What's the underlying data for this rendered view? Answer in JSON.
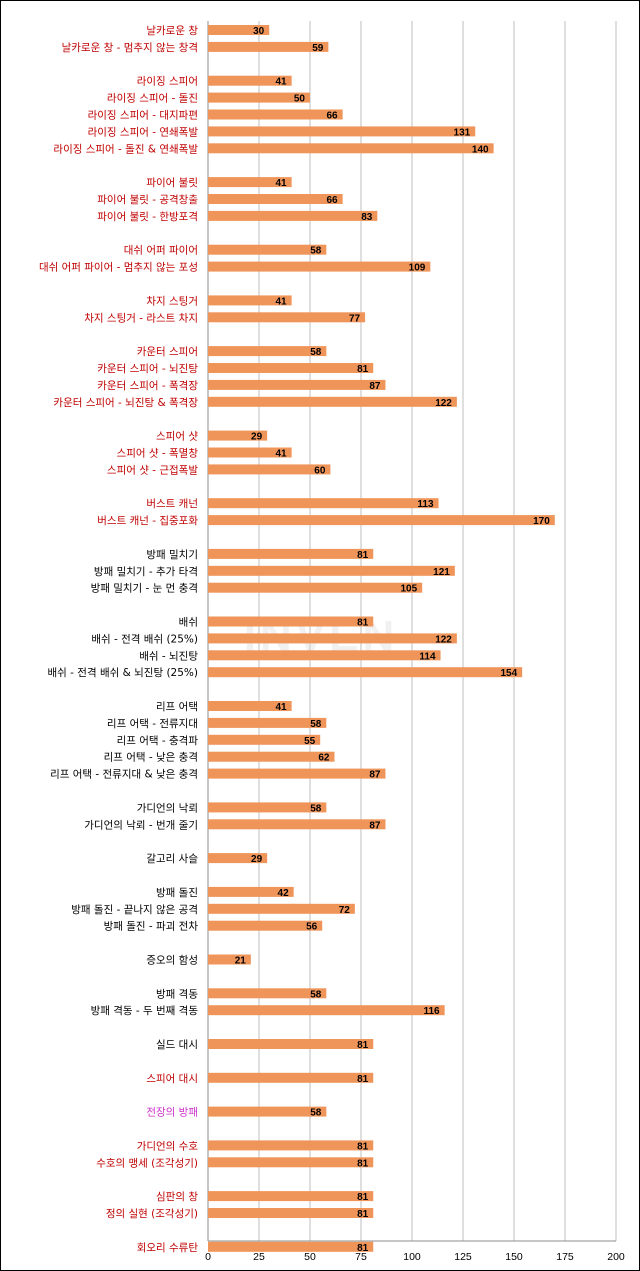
{
  "watermark": "INVEN",
  "chart_data": {
    "type": "bar",
    "orientation": "horizontal",
    "grid": true,
    "xlim": [
      0,
      200
    ],
    "xticks": [
      0,
      25,
      50,
      75,
      100,
      125,
      150,
      175,
      200
    ],
    "colors": {
      "bar": "#f0955a",
      "label_red": "#c00000",
      "label_black": "#000000",
      "label_magenta": "#cc33cc",
      "grid": "#bfbfbf"
    },
    "groups": [
      {
        "color": "red",
        "items": [
          {
            "label": "날카로운 창",
            "value": 30
          },
          {
            "label": "날카로운 창 - 멈추지 않는 창격",
            "value": 59
          }
        ]
      },
      {
        "color": "red",
        "items": [
          {
            "label": "라이징 스피어",
            "value": 41
          },
          {
            "label": "라이징 스피어 - 돌진",
            "value": 50
          },
          {
            "label": "라이징 스피어 - 대지파편",
            "value": 66
          },
          {
            "label": "라이징 스피어 - 연쇄폭발",
            "value": 131
          },
          {
            "label": "라이징 스피어 - 돌진 & 연쇄폭발",
            "value": 140
          }
        ]
      },
      {
        "color": "red",
        "items": [
          {
            "label": "파이어 불릿",
            "value": 41
          },
          {
            "label": "파이어 불릿 - 공격창출",
            "value": 66
          },
          {
            "label": "파이어 불릿 - 한방포격",
            "value": 83
          }
        ]
      },
      {
        "color": "red",
        "items": [
          {
            "label": "대쉬 어퍼 파이어",
            "value": 58
          },
          {
            "label": "대쉬 어퍼 파이어 - 멈추지 않는 포성",
            "value": 109
          }
        ]
      },
      {
        "color": "red",
        "items": [
          {
            "label": "차지 스팅거",
            "value": 41
          },
          {
            "label": "차지 스팅거 - 라스트 차지",
            "value": 77
          }
        ]
      },
      {
        "color": "red",
        "items": [
          {
            "label": "카운터 스피어",
            "value": 58
          },
          {
            "label": "카운터 스피어 - 뇌진탕",
            "value": 81
          },
          {
            "label": "카운터 스피어 - 폭격장",
            "value": 87
          },
          {
            "label": "카운터 스피어 - 뇌진탕 & 폭격장",
            "value": 122
          }
        ]
      },
      {
        "color": "red",
        "items": [
          {
            "label": "스피어 샷",
            "value": 29
          },
          {
            "label": "스피어 샷 - 폭멸창",
            "value": 41
          },
          {
            "label": "스피어 샷 - 근접폭발",
            "value": 60
          }
        ]
      },
      {
        "color": "red",
        "items": [
          {
            "label": "버스트 캐넌",
            "value": 113
          },
          {
            "label": "버스트 캐넌 - 집중포화",
            "value": 170
          }
        ]
      },
      {
        "color": "black",
        "items": [
          {
            "label": "방패 밀치기",
            "value": 81
          },
          {
            "label": "방패 밀치기 - 추가 타격",
            "value": 121
          },
          {
            "label": "방패 밀치기 - 눈 먼 충격",
            "value": 105
          }
        ]
      },
      {
        "color": "black",
        "items": [
          {
            "label": "배쉬",
            "value": 81
          },
          {
            "label": "배쉬 - 전격 배쉬 (25%)",
            "value": 122
          },
          {
            "label": "배쉬 - 뇌진탕",
            "value": 114
          },
          {
            "label": "배쉬 - 전격 배쉬 & 뇌진탕 (25%)",
            "value": 154
          }
        ]
      },
      {
        "color": "black",
        "items": [
          {
            "label": "리프 어택",
            "value": 41
          },
          {
            "label": "리프 어택 - 전류지대",
            "value": 58
          },
          {
            "label": "리프 어택 - 충격파",
            "value": 55
          },
          {
            "label": "리프 어택 - 낮은 충격",
            "value": 62
          },
          {
            "label": "리프 어택 - 전류지대 & 낮은 충격",
            "value": 87
          }
        ]
      },
      {
        "color": "black",
        "items": [
          {
            "label": "가디언의 낙뢰",
            "value": 58
          },
          {
            "label": "가디언의 낙뢰 - 번개 줄기",
            "value": 87
          }
        ]
      },
      {
        "color": "black",
        "items": [
          {
            "label": "갈고리 사슬",
            "value": 29
          }
        ]
      },
      {
        "color": "black",
        "items": [
          {
            "label": "방패 돌진",
            "value": 42
          },
          {
            "label": "방패 돌진 - 끝나지 않은 공격",
            "value": 72
          },
          {
            "label": "방패 돌진 - 파괴 전차",
            "value": 56
          }
        ]
      },
      {
        "color": "black",
        "items": [
          {
            "label": "증오의 함성",
            "value": 21
          }
        ]
      },
      {
        "color": "black",
        "items": [
          {
            "label": "방패 격동",
            "value": 58
          },
          {
            "label": "방패 격동 - 두 번째 격동",
            "value": 116
          }
        ]
      },
      {
        "color": "black",
        "items": [
          {
            "label": "실드 대시",
            "value": 81
          }
        ]
      },
      {
        "color": "red",
        "items": [
          {
            "label": "스피어 대시",
            "value": 81
          }
        ]
      },
      {
        "color": "magenta",
        "items": [
          {
            "label": "전장의 방패",
            "value": 58
          }
        ]
      },
      {
        "color": "red",
        "items": [
          {
            "label": "가디언의 수호",
            "value": 81
          },
          {
            "label": "수호의 맹세 (조각성기)",
            "value": 81
          }
        ]
      },
      {
        "color": "red",
        "items": [
          {
            "label": "심판의 창",
            "value": 81
          },
          {
            "label": "정의 실현 (조각성기)",
            "value": 81
          }
        ]
      },
      {
        "color": "red",
        "items": [
          {
            "label": "회오리 수류탄",
            "value": 81
          }
        ]
      }
    ]
  }
}
